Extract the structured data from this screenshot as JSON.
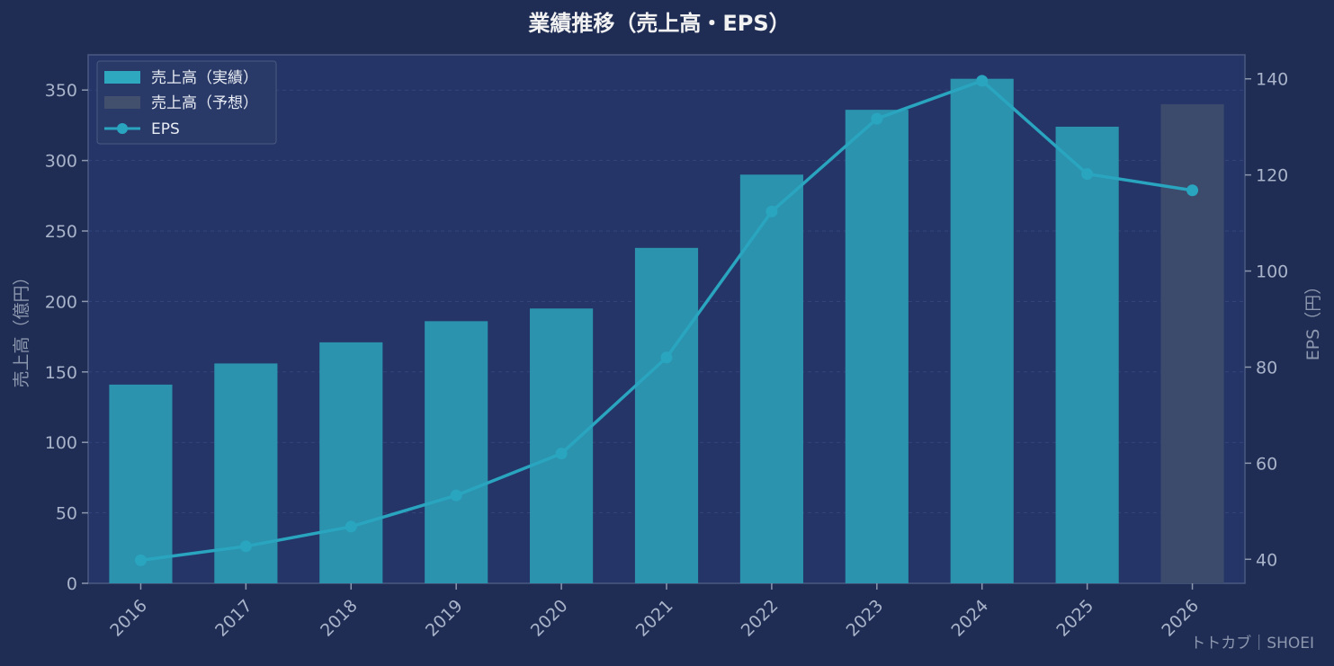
{
  "chart_data": {
    "type": "bar",
    "title": "業績推移（売上高・EPS）",
    "categories": [
      "2016",
      "2017",
      "2018",
      "2019",
      "2020",
      "2021",
      "2022",
      "2023",
      "2024",
      "2025",
      "2026"
    ],
    "series": [
      {
        "name": "売上高（実績）",
        "axis": "left",
        "kind": "bar",
        "values": [
          141,
          156,
          171,
          186,
          195,
          238,
          290,
          336,
          358,
          324,
          null
        ]
      },
      {
        "name": "売上高（予想）",
        "axis": "left",
        "kind": "bar",
        "values": [
          null,
          null,
          null,
          null,
          null,
          null,
          null,
          null,
          null,
          null,
          340
        ]
      },
      {
        "name": "EPS",
        "axis": "right",
        "kind": "line",
        "values": [
          39.8,
          42.7,
          46.8,
          53.3,
          62,
          82,
          112.4,
          131.7,
          139.6,
          120.2,
          116.8
        ]
      }
    ],
    "ylabel": "売上高（億円）",
    "y2label": "EPS（円）",
    "ylim": [
      0,
      375
    ],
    "y2lim": [
      35,
      145
    ],
    "yticks": [
      0,
      50,
      100,
      150,
      200,
      250,
      300,
      350
    ],
    "y2ticks": [
      40,
      60,
      80,
      100,
      120,
      140
    ],
    "grid": true,
    "legend_position": "top-left",
    "colors": {
      "actual": "#2b93ad",
      "forecast": "#3c4a6b",
      "eps": "#2aa5c0",
      "legend_actual": "#2ea8bf",
      "legend_forecast": "#42506e"
    }
  },
  "footer": "トトカブ｜SHOEI"
}
